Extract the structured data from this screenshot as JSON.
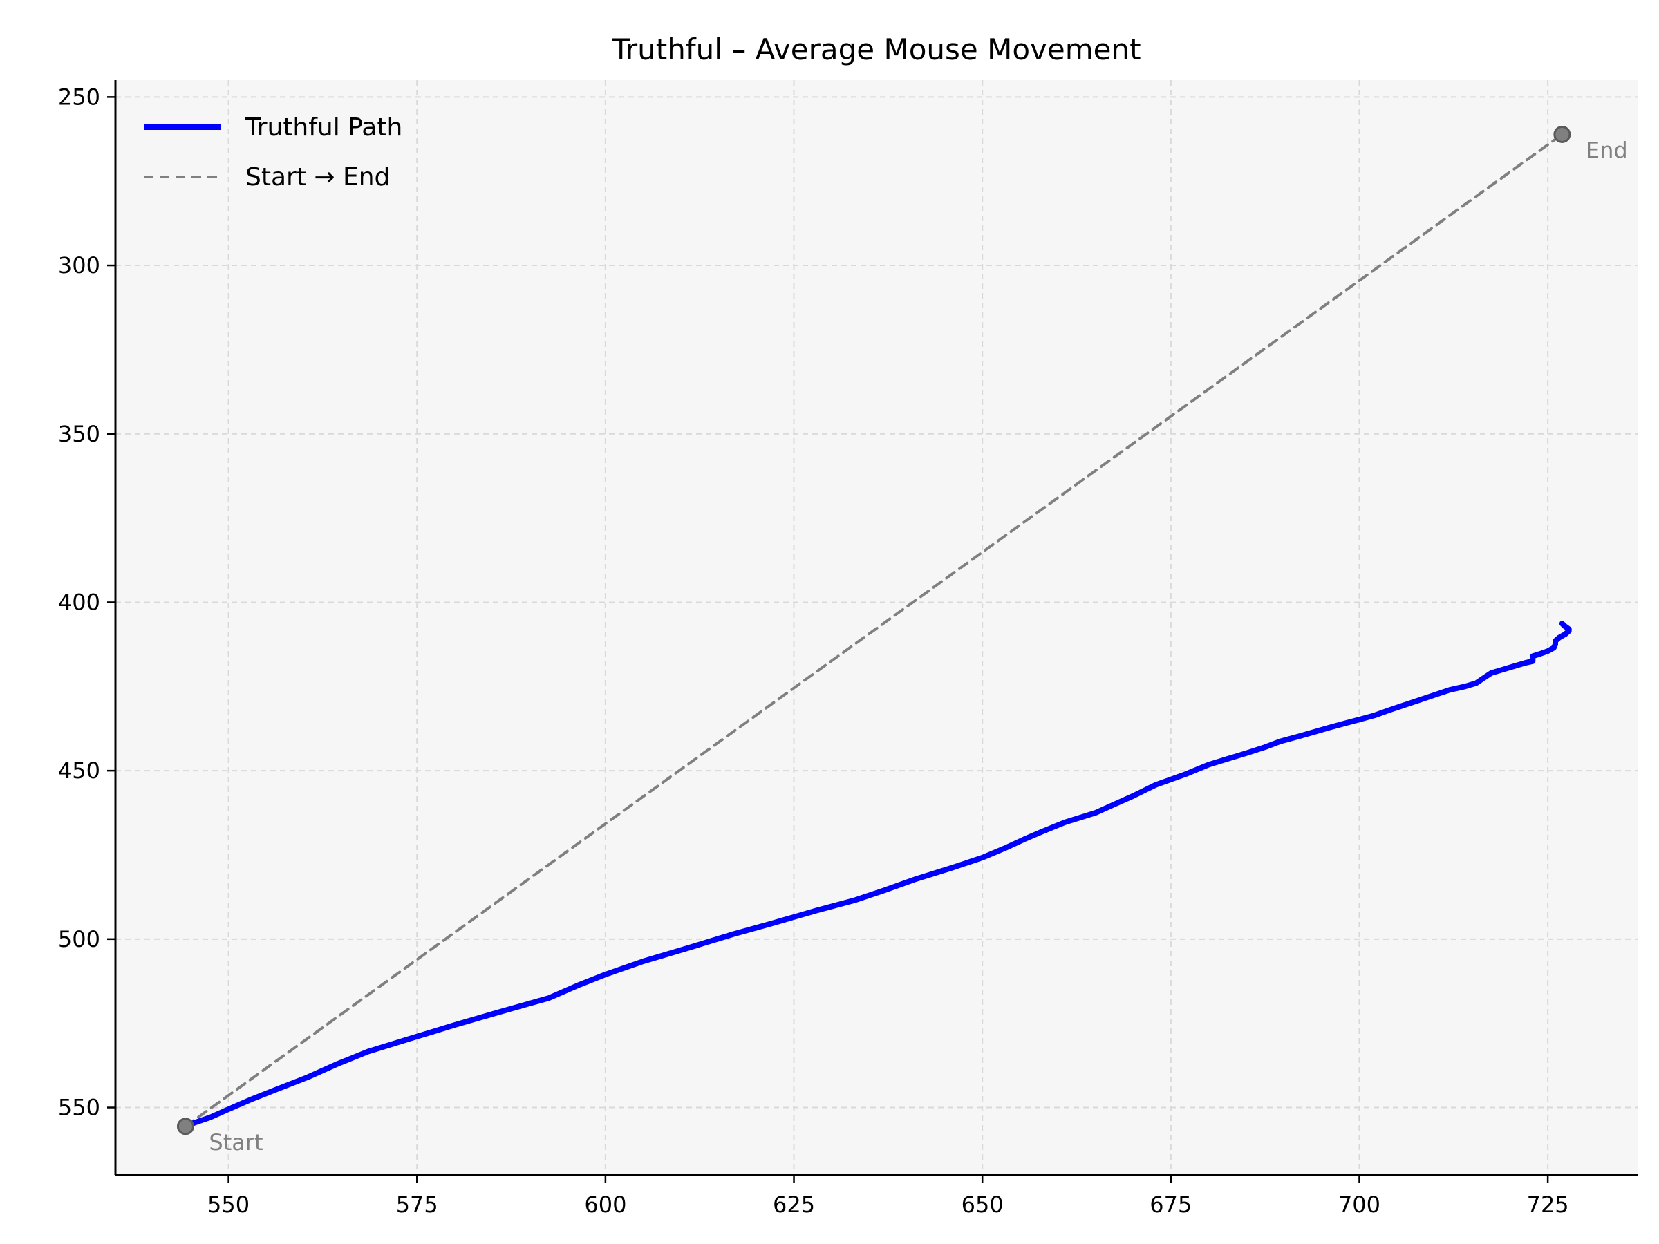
{
  "chart_data": {
    "type": "line",
    "title": "Truthful – Average Mouse Movement",
    "xlabel": "",
    "ylabel": "",
    "xlim": [
      535,
      737
    ],
    "ylim": [
      570,
      245
    ],
    "y_inverted": true,
    "grid": true,
    "legend_position": "top-left",
    "x_ticks": [
      550,
      575,
      600,
      625,
      650,
      675,
      700,
      725
    ],
    "y_ticks": [
      250,
      300,
      350,
      400,
      450,
      500,
      550
    ],
    "x_tick_labels": [
      "550",
      "575",
      "600",
      "625",
      "650",
      "675",
      "700",
      "725"
    ],
    "y_tick_labels": [
      "250",
      "300",
      "350",
      "400",
      "450",
      "500",
      "550"
    ],
    "series": [
      {
        "name": "Truthful Path",
        "color": "#0000ff",
        "style": "solid",
        "points": [
          [
            544.3,
            555.6
          ],
          [
            545.5,
            554.5
          ],
          [
            547.5,
            553.0
          ],
          [
            550,
            550.5
          ],
          [
            553,
            547.6
          ],
          [
            556.5,
            544.5
          ],
          [
            560.5,
            541.0
          ],
          [
            564.5,
            537.0
          ],
          [
            568.5,
            533.4
          ],
          [
            574,
            529.6
          ],
          [
            580,
            525.5
          ],
          [
            586,
            521.6
          ],
          [
            592.5,
            517.5
          ],
          [
            596.5,
            513.6
          ],
          [
            600,
            510.5
          ],
          [
            605,
            506.6
          ],
          [
            611,
            502.6
          ],
          [
            617,
            498.5
          ],
          [
            622,
            495.4
          ],
          [
            628,
            491.5
          ],
          [
            633,
            488.5
          ],
          [
            637,
            485.5
          ],
          [
            641,
            482.3
          ],
          [
            646,
            478.8
          ],
          [
            650,
            475.8
          ],
          [
            653,
            473.0
          ],
          [
            655.5,
            470.4
          ],
          [
            658,
            468.0
          ],
          [
            661,
            465.3
          ],
          [
            665,
            462.5
          ],
          [
            667.5,
            460.0
          ],
          [
            670,
            457.5
          ],
          [
            673,
            454.2
          ],
          [
            677,
            451.0
          ],
          [
            680,
            448.2
          ],
          [
            682.5,
            446.5
          ],
          [
            685,
            444.8
          ],
          [
            687.5,
            443.0
          ],
          [
            689.5,
            441.3
          ],
          [
            692,
            439.8
          ],
          [
            694,
            438.5
          ],
          [
            696,
            437.2
          ],
          [
            698,
            436.0
          ],
          [
            700,
            434.8
          ],
          [
            702,
            433.6
          ],
          [
            704,
            432.0
          ],
          [
            706,
            430.5
          ],
          [
            708,
            429.0
          ],
          [
            710,
            427.5
          ],
          [
            712,
            426.0
          ],
          [
            714,
            425.0
          ],
          [
            715.5,
            424.0
          ],
          [
            716.5,
            422.5
          ],
          [
            717.5,
            421.0
          ],
          [
            719,
            420.0
          ],
          [
            720.5,
            419.0
          ],
          [
            722,
            418.0
          ],
          [
            723,
            417.5
          ],
          [
            723,
            416.0
          ],
          [
            724,
            415.3
          ],
          [
            725,
            414.5
          ],
          [
            725.8,
            413.5
          ],
          [
            726,
            412.5
          ],
          [
            726,
            411.5
          ],
          [
            726.5,
            410.5
          ],
          [
            727.3,
            409.5
          ],
          [
            727.8,
            408.5
          ],
          [
            727.8,
            408.0
          ],
          [
            727.2,
            407.0
          ],
          [
            726.9,
            406.3
          ]
        ]
      },
      {
        "name": "Start → End",
        "color": "#808080",
        "style": "dashed",
        "points": [
          [
            544.3,
            555.6
          ],
          [
            726.9,
            261.1
          ]
        ]
      }
    ],
    "markers": [
      {
        "label": "Start",
        "x": 544.3,
        "y": 555.6
      },
      {
        "label": "End",
        "x": 726.9,
        "y": 261.1
      }
    ]
  }
}
